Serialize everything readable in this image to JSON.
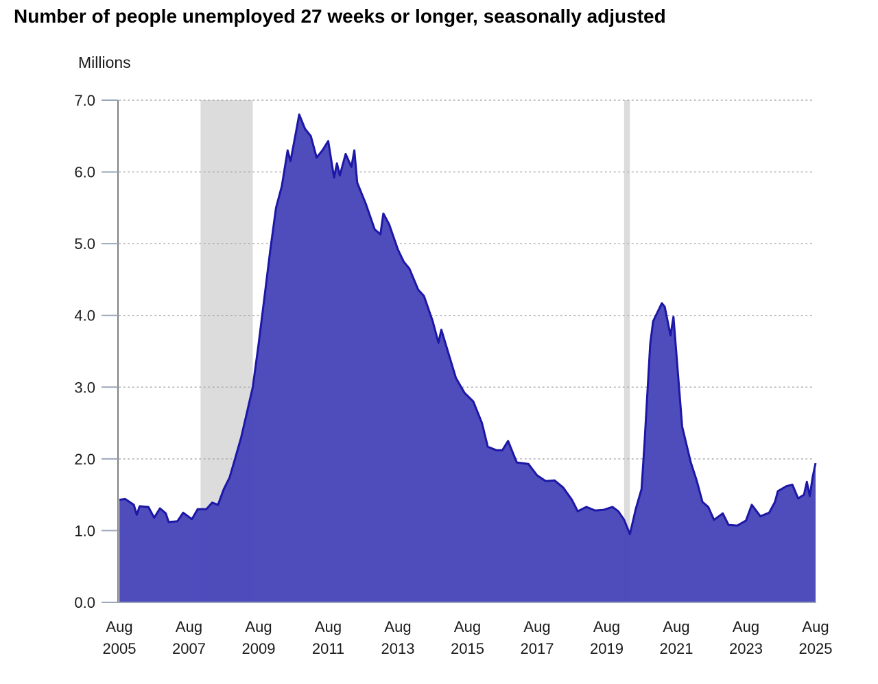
{
  "chart_data": {
    "type": "area",
    "title": "Number of people unemployed 27 weeks or longer, seasonally adjusted",
    "ylabel": "Millions",
    "xlabel": "",
    "ylim": [
      0,
      7
    ],
    "yticks": [
      "0.0",
      "1.0",
      "2.0",
      "3.0",
      "4.0",
      "5.0",
      "6.0",
      "7.0"
    ],
    "xticks": [
      {
        "month": "Aug",
        "year": "2005"
      },
      {
        "month": "Aug",
        "year": "2007"
      },
      {
        "month": "Aug",
        "year": "2009"
      },
      {
        "month": "Aug",
        "year": "2011"
      },
      {
        "month": "Aug",
        "year": "2013"
      },
      {
        "month": "Aug",
        "year": "2015"
      },
      {
        "month": "Aug",
        "year": "2017"
      },
      {
        "month": "Aug",
        "year": "2019"
      },
      {
        "month": "Aug",
        "year": "2021"
      },
      {
        "month": "Aug",
        "year": "2023"
      },
      {
        "month": "Aug",
        "year": "2025"
      }
    ],
    "grid": "horizontal-dotted",
    "recessions": [
      [
        "2007-12",
        "2009-06"
      ],
      [
        "2020-02",
        "2020-04"
      ]
    ],
    "colors": {
      "fill": "#4845b9",
      "line": "#1c17a6",
      "recession": "#dcdcdc",
      "grid": "#a9a9a9",
      "axis": "#9aa6b8"
    },
    "series": [
      {
        "points": [
          [
            "2005-08",
            1.43
          ],
          [
            "2005-10",
            1.44
          ],
          [
            "2006-01",
            1.36
          ],
          [
            "2006-02",
            1.22
          ],
          [
            "2006-03",
            1.34
          ],
          [
            "2006-06",
            1.33
          ],
          [
            "2006-08",
            1.18
          ],
          [
            "2006-10",
            1.31
          ],
          [
            "2006-12",
            1.24
          ],
          [
            "2007-01",
            1.12
          ],
          [
            "2007-04",
            1.13
          ],
          [
            "2007-06",
            1.25
          ],
          [
            "2007-09",
            1.16
          ],
          [
            "2007-11",
            1.3
          ],
          [
            "2008-02",
            1.3
          ],
          [
            "2008-04",
            1.39
          ],
          [
            "2008-06",
            1.36
          ],
          [
            "2008-08",
            1.58
          ],
          [
            "2008-10",
            1.74
          ],
          [
            "2008-12",
            2.02
          ],
          [
            "2009-02",
            2.3
          ],
          [
            "2009-04",
            2.65
          ],
          [
            "2009-06",
            3.0
          ],
          [
            "2009-08",
            3.6
          ],
          [
            "2009-10",
            4.25
          ],
          [
            "2009-12",
            4.9
          ],
          [
            "2010-02",
            5.5
          ],
          [
            "2010-04",
            5.8
          ],
          [
            "2010-06",
            6.3
          ],
          [
            "2010-07",
            6.15
          ],
          [
            "2010-09",
            6.58
          ],
          [
            "2010-10",
            6.8
          ],
          [
            "2010-12",
            6.6
          ],
          [
            "2011-02",
            6.5
          ],
          [
            "2011-04",
            6.2
          ],
          [
            "2011-06",
            6.3
          ],
          [
            "2011-08",
            6.43
          ],
          [
            "2011-10",
            5.92
          ],
          [
            "2011-11",
            6.12
          ],
          [
            "2011-12",
            5.95
          ],
          [
            "2012-02",
            6.25
          ],
          [
            "2012-04",
            6.07
          ],
          [
            "2012-05",
            6.3
          ],
          [
            "2012-06",
            5.85
          ],
          [
            "2012-09",
            5.55
          ],
          [
            "2012-12",
            5.2
          ],
          [
            "2013-02",
            5.13
          ],
          [
            "2013-03",
            5.42
          ],
          [
            "2013-05",
            5.27
          ],
          [
            "2013-08",
            4.92
          ],
          [
            "2013-10",
            4.75
          ],
          [
            "2013-12",
            4.65
          ],
          [
            "2014-03",
            4.36
          ],
          [
            "2014-05",
            4.27
          ],
          [
            "2014-08",
            3.92
          ],
          [
            "2014-10",
            3.62
          ],
          [
            "2014-11",
            3.8
          ],
          [
            "2015-02",
            3.4
          ],
          [
            "2015-04",
            3.13
          ],
          [
            "2015-07",
            2.92
          ],
          [
            "2015-10",
            2.8
          ],
          [
            "2016-01",
            2.5
          ],
          [
            "2016-03",
            2.17
          ],
          [
            "2016-06",
            2.12
          ],
          [
            "2016-08",
            2.12
          ],
          [
            "2016-10",
            2.25
          ],
          [
            "2017-01",
            1.95
          ],
          [
            "2017-05",
            1.93
          ],
          [
            "2017-08",
            1.77
          ],
          [
            "2017-11",
            1.69
          ],
          [
            "2018-02",
            1.7
          ],
          [
            "2018-05",
            1.6
          ],
          [
            "2018-08",
            1.43
          ],
          [
            "2018-10",
            1.27
          ],
          [
            "2019-01",
            1.33
          ],
          [
            "2019-04",
            1.28
          ],
          [
            "2019-07",
            1.29
          ],
          [
            "2019-10",
            1.33
          ],
          [
            "2019-12",
            1.27
          ],
          [
            "2020-02",
            1.15
          ],
          [
            "2020-04",
            0.95
          ],
          [
            "2020-06",
            1.3
          ],
          [
            "2020-08",
            1.58
          ],
          [
            "2020-09",
            2.2
          ],
          [
            "2020-11",
            3.6
          ],
          [
            "2020-12",
            3.92
          ],
          [
            "2021-03",
            4.17
          ],
          [
            "2021-04",
            4.12
          ],
          [
            "2021-06",
            3.72
          ],
          [
            "2021-07",
            3.98
          ],
          [
            "2021-10",
            2.45
          ],
          [
            "2022-01",
            1.95
          ],
          [
            "2022-03",
            1.7
          ],
          [
            "2022-05",
            1.4
          ],
          [
            "2022-07",
            1.33
          ],
          [
            "2022-09",
            1.15
          ],
          [
            "2022-12",
            1.24
          ],
          [
            "2023-02",
            1.08
          ],
          [
            "2023-05",
            1.07
          ],
          [
            "2023-08",
            1.14
          ],
          [
            "2023-10",
            1.36
          ],
          [
            "2024-01",
            1.2
          ],
          [
            "2024-04",
            1.25
          ],
          [
            "2024-06",
            1.4
          ],
          [
            "2024-07",
            1.55
          ],
          [
            "2024-10",
            1.62
          ],
          [
            "2024-12",
            1.64
          ],
          [
            "2025-02",
            1.45
          ],
          [
            "2025-04",
            1.5
          ],
          [
            "2025-05",
            1.68
          ],
          [
            "2025-06",
            1.48
          ],
          [
            "2025-07",
            1.75
          ],
          [
            "2025-08",
            1.94
          ]
        ]
      }
    ]
  }
}
